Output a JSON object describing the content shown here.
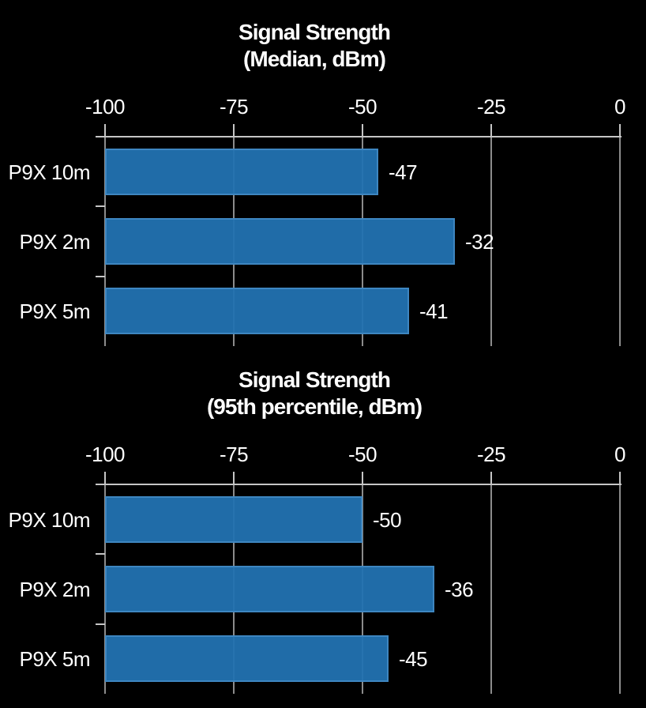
{
  "page": {
    "background_color": "#000000",
    "text_color": "#ffffff"
  },
  "style": {
    "bar_fill": "#2272b1",
    "bar_fill_rgba": "rgba(34,114,177,0.95)",
    "bar_border": "#3e86c0",
    "gridline_color": "#8c8c8c",
    "axis_color": "#c6c6c6"
  },
  "chart_data": [
    {
      "type": "bar",
      "orientation": "horizontal",
      "title": "Signal Strength (Median, dBm)",
      "title_line1": "Signal Strength",
      "title_line2": "(Median, dBm)",
      "categories": [
        "P9X 10m",
        "P9X 2m",
        "P9X 5m"
      ],
      "values": [
        -47,
        -32,
        -41
      ],
      "data_labels": [
        "-47",
        "-32",
        "-41"
      ],
      "xlim": [
        -100,
        0
      ],
      "x_ticks": [
        -100,
        -75,
        -50,
        -25,
        0
      ],
      "x_tick_labels": [
        "-100",
        "-75",
        "-50",
        "-25",
        "0"
      ],
      "axis_position": "top",
      "grid": true,
      "legend": false
    },
    {
      "type": "bar",
      "orientation": "horizontal",
      "title": "Signal Strength (95th percentile, dBm)",
      "title_line1": "Signal Strength",
      "title_line2": "(95th percentile, dBm)",
      "categories": [
        "P9X 10m",
        "P9X 2m",
        "P9X 5m"
      ],
      "values": [
        -50,
        -36,
        -45
      ],
      "data_labels": [
        "-50",
        "-36",
        "-45"
      ],
      "xlim": [
        -100,
        0
      ],
      "x_ticks": [
        -100,
        -75,
        -50,
        -25,
        0
      ],
      "x_tick_labels": [
        "-100",
        "-75",
        "-50",
        "-25",
        "0"
      ],
      "axis_position": "top",
      "grid": true,
      "legend": false
    }
  ]
}
